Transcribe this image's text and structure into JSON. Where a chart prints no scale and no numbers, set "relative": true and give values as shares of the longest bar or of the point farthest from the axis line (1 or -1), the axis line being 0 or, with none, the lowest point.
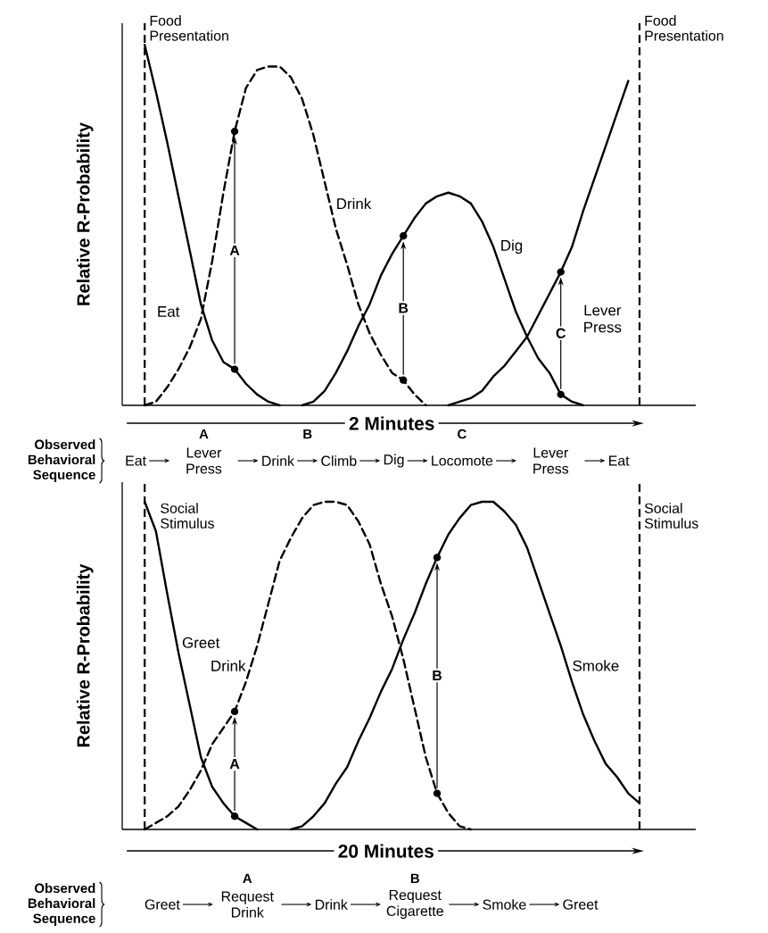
{
  "chart_data": [
    {
      "type": "line",
      "relative": true,
      "ylabel": "Relative R-Probability",
      "xlabel": "2 Minutes",
      "categories": [
        null,
        null,
        null,
        null,
        null,
        null,
        null,
        null,
        null,
        null,
        null,
        null,
        null,
        null,
        null,
        null,
        null,
        null,
        null,
        null,
        null,
        null,
        null,
        null,
        null,
        null,
        null,
        null,
        null,
        null,
        null,
        null,
        null,
        null,
        null,
        null,
        null,
        null,
        null,
        null,
        null,
        null,
        null,
        null,
        null
      ],
      "series": [
        {
          "name": "Eat",
          "color": "#000000",
          "line_style": "solid",
          "values": [
            1.0,
            0.87,
            0.73,
            0.58,
            0.43,
            0.28,
            0.18,
            0.12,
            0.1,
            0.06,
            0.03,
            0.01,
            0,
            null,
            null,
            null,
            null,
            null,
            null,
            null,
            null,
            null,
            null,
            null,
            null,
            null,
            null,
            null,
            null,
            null,
            null,
            null,
            null,
            null,
            null,
            null,
            null,
            null,
            null,
            null,
            null,
            null,
            null,
            null,
            null
          ]
        },
        {
          "name": "Drink",
          "color": "#000000",
          "line_style": "dashed",
          "values": [
            0,
            0.01,
            0.05,
            0.1,
            0.16,
            0.24,
            0.4,
            0.59,
            0.76,
            0.88,
            0.93,
            0.94,
            0.94,
            0.91,
            0.85,
            0.75,
            0.62,
            0.49,
            0.39,
            0.28,
            0.2,
            0.14,
            0.09,
            0.07,
            0.03,
            0,
            null,
            null,
            null,
            null,
            null,
            null,
            null,
            null,
            null,
            null,
            null,
            null,
            null,
            null,
            null,
            null,
            null,
            null,
            null
          ]
        },
        {
          "name": "Dig",
          "color": "#000000",
          "line_style": "solid",
          "values": [
            null,
            null,
            null,
            null,
            null,
            null,
            null,
            null,
            null,
            null,
            null,
            null,
            null,
            null,
            0,
            0.01,
            0.04,
            0.09,
            0.15,
            0.22,
            0.28,
            0.36,
            0.42,
            0.47,
            0.52,
            0.56,
            0.58,
            0.59,
            0.58,
            0.56,
            0.51,
            0.44,
            0.35,
            0.26,
            0.19,
            0.13,
            0.09,
            0.03,
            0.01,
            0,
            null,
            null,
            null,
            null,
            null
          ]
        },
        {
          "name": "Lever Press",
          "color": "#000000",
          "line_style": "solid",
          "values": [
            null,
            null,
            null,
            null,
            null,
            null,
            null,
            null,
            null,
            null,
            null,
            null,
            null,
            null,
            null,
            null,
            null,
            null,
            null,
            null,
            null,
            null,
            null,
            null,
            null,
            null,
            null,
            0,
            0.01,
            0.02,
            0.04,
            0.08,
            0.11,
            0.15,
            0.19,
            0.25,
            0.31,
            0.37,
            0.44,
            0.54,
            0.63,
            0.72,
            0.81,
            0.9,
            null
          ]
        }
      ],
      "annotations": [
        "A",
        "B",
        "C",
        "Observed Behavioral Sequence",
        "Eat",
        "Lever Press",
        "Drink",
        "Climb",
        "Dig",
        "Locomote",
        "Lever Press",
        "Eat",
        "A",
        "B",
        "C",
        "Food Presentation",
        "Food Presentation"
      ]
    },
    {
      "type": "line",
      "relative": true,
      "ylabel": "Relative R-Probability",
      "xlabel": "20 Minutes",
      "categories": [
        null,
        null,
        null,
        null,
        null,
        null,
        null,
        null,
        null,
        null,
        null,
        null,
        null,
        null,
        null,
        null,
        null,
        null,
        null,
        null,
        null,
        null,
        null,
        null,
        null,
        null,
        null,
        null,
        null,
        null,
        null,
        null,
        null,
        null,
        null,
        null,
        null,
        null,
        null,
        null,
        null,
        null,
        null,
        null,
        null
      ],
      "series": [
        {
          "name": "Greet",
          "color": "#000000",
          "line_style": "solid",
          "values": [
            1.0,
            0.91,
            0.72,
            0.54,
            0.38,
            0.22,
            0.13,
            0.08,
            0.04,
            0.02,
            0,
            null,
            null,
            null,
            null,
            null,
            null,
            null,
            null,
            null,
            null,
            null,
            null,
            null,
            null,
            null,
            null,
            null,
            null,
            null,
            null,
            null,
            null,
            null,
            null,
            null,
            null,
            null,
            null,
            null,
            null,
            null,
            null,
            null,
            null
          ]
        },
        {
          "name": "Drink",
          "color": "#000000",
          "line_style": "dashed",
          "values": [
            0,
            0.02,
            0.04,
            0.07,
            0.12,
            0.18,
            0.26,
            0.31,
            0.36,
            0.45,
            0.56,
            0.69,
            0.82,
            0.89,
            0.95,
            0.99,
            1.0,
            1.0,
            0.99,
            0.94,
            0.87,
            0.75,
            0.65,
            0.52,
            0.37,
            0.22,
            0.11,
            0.05,
            0.01,
            0,
            null,
            null,
            null,
            null,
            null,
            null,
            null,
            null,
            null,
            null,
            null,
            null,
            null,
            null,
            null
          ]
        },
        {
          "name": "Smoke",
          "color": "#000000",
          "line_style": "solid",
          "values": [
            null,
            null,
            null,
            null,
            null,
            null,
            null,
            null,
            null,
            null,
            null,
            null,
            null,
            0,
            0.01,
            0.04,
            0.08,
            0.14,
            0.19,
            0.27,
            0.34,
            0.42,
            0.49,
            0.58,
            0.66,
            0.75,
            0.83,
            0.9,
            0.95,
            0.99,
            1.0,
            1.0,
            0.97,
            0.93,
            0.86,
            0.76,
            0.66,
            0.56,
            0.45,
            0.35,
            0.27,
            0.2,
            0.16,
            0.11,
            0.08
          ]
        }
      ],
      "annotations": [
        "A",
        "B",
        "Observed Behavioral Sequence",
        "Greet",
        "Request Drink",
        "Drink",
        "Request Cigarette",
        "Smoke",
        "Greet",
        "A",
        "B",
        "Social Stimulus",
        "Social Stimulus"
      ]
    }
  ]
}
